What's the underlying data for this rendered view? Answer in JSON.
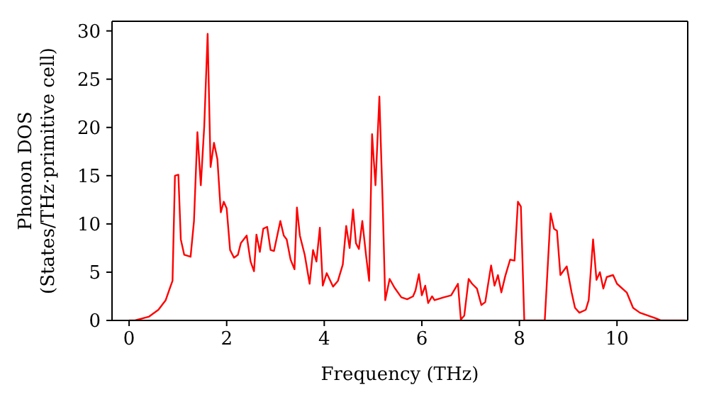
{
  "chart_data": {
    "type": "line",
    "xlabel": "Frequency (THz)",
    "ylabel": "Phonon DOS\n(States/THz·primitive cell)",
    "x": [
      0,
      0.12,
      0.41,
      0.6,
      0.75,
      0.84,
      0.89,
      0.94,
      1.01,
      1.06,
      1.13,
      1.26,
      1.33,
      1.4,
      1.47,
      1.54,
      1.61,
      1.67,
      1.74,
      1.81,
      1.88,
      1.94,
      2.0,
      2.07,
      2.15,
      2.23,
      2.29,
      2.41,
      2.49,
      2.56,
      2.61,
      2.68,
      2.75,
      2.83,
      2.9,
      2.97,
      3.1,
      3.17,
      3.23,
      3.31,
      3.39,
      3.44,
      3.5,
      3.6,
      3.7,
      3.77,
      3.84,
      3.91,
      3.97,
      4.05,
      4.18,
      4.28,
      4.38,
      4.45,
      4.52,
      4.59,
      4.65,
      4.71,
      4.78,
      4.86,
      4.92,
      4.98,
      5.05,
      5.13,
      5.2,
      5.25,
      5.34,
      5.44,
      5.58,
      5.7,
      5.82,
      5.87,
      5.94,
      6.0,
      6.07,
      6.13,
      6.21,
      6.26,
      6.45,
      6.6,
      6.74,
      6.8,
      6.87,
      6.96,
      7.03,
      7.13,
      7.22,
      7.3,
      7.42,
      7.49,
      7.56,
      7.63,
      7.71,
      7.81,
      7.9,
      7.97,
      8.03,
      8.1,
      8.52,
      8.64,
      8.71,
      8.77,
      8.84,
      8.97,
      9.07,
      9.14,
      9.23,
      9.36,
      9.42,
      9.51,
      9.58,
      9.65,
      9.72,
      9.79,
      9.92,
      10.0,
      10.2,
      10.33,
      10.47,
      10.81,
      10.9,
      11.4
    ],
    "series": [
      {
        "color": "#ff0000",
        "values": [
          0,
          0,
          0.4,
          1.1,
          2.1,
          3.4,
          4.1,
          15.0,
          15.1,
          8.4,
          6.8,
          6.6,
          10.3,
          19.5,
          14.0,
          20.1,
          29.7,
          15.9,
          18.4,
          16.7,
          11.2,
          12.3,
          11.6,
          7.3,
          6.5,
          6.8,
          8.0,
          8.8,
          6.1,
          5.1,
          8.9,
          7.1,
          9.5,
          9.7,
          7.3,
          7.2,
          10.3,
          8.8,
          8.4,
          6.3,
          5.3,
          11.7,
          8.8,
          6.8,
          3.8,
          7.3,
          6.1,
          9.6,
          3.6,
          4.9,
          3.5,
          4.1,
          5.8,
          9.8,
          7.5,
          11.5,
          8.0,
          7.4,
          10.3,
          6.6,
          4.1,
          19.3,
          14.0,
          23.2,
          11.7,
          2.1,
          4.3,
          3.4,
          2.4,
          2.2,
          2.5,
          3.1,
          4.8,
          2.6,
          3.6,
          1.8,
          2.5,
          2.1,
          2.4,
          2.6,
          3.8,
          0.1,
          0.5,
          4.3,
          3.8,
          3.3,
          1.6,
          1.9,
          5.7,
          3.6,
          4.7,
          2.9,
          4.6,
          6.3,
          6.2,
          12.3,
          11.8,
          0,
          0,
          11.1,
          9.5,
          9.3,
          4.7,
          5.6,
          2.9,
          1.3,
          0.8,
          1.1,
          2.1,
          8.4,
          4.2,
          5.0,
          3.3,
          4.5,
          4.7,
          3.8,
          2.9,
          1.3,
          0.8,
          0.2,
          0,
          0
        ]
      }
    ],
    "xlim": [
      -0.35,
      11.45
    ],
    "xticks": [
      0,
      2,
      4,
      6,
      8,
      10
    ],
    "ylim": [
      0,
      31
    ],
    "yticks": [
      0,
      5,
      10,
      15,
      20,
      25,
      30
    ],
    "grid": false,
    "legend": false,
    "marker": "none",
    "line_style": "solid"
  }
}
